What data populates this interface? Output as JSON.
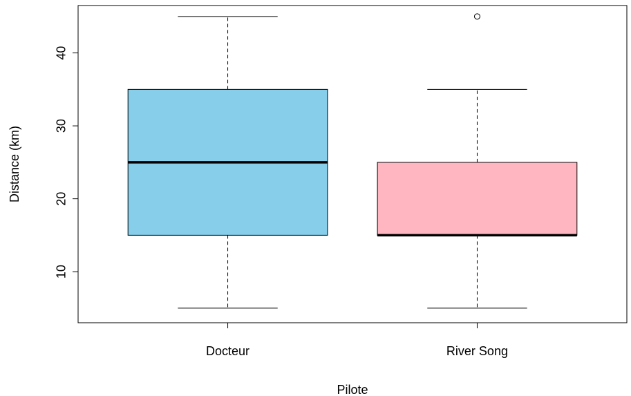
{
  "chart_data": {
    "type": "boxplot",
    "title": "",
    "xlabel": "Pilote",
    "ylabel": "Distance (km)",
    "ylim": [
      3,
      46.5
    ],
    "yticks": [
      10,
      20,
      30,
      40
    ],
    "grid": false,
    "groups": [
      {
        "label": "Docteur",
        "color": "#87CEEB",
        "whisker_low": 5,
        "q1": 15,
        "median": 25,
        "q3": 35,
        "whisker_high": 45,
        "outliers": []
      },
      {
        "label": "River Song",
        "color": "#FFB6C1",
        "whisker_low": 5,
        "q1": 15,
        "median": 15,
        "q3": 25,
        "whisker_high": 35,
        "outliers": [
          45
        ]
      }
    ]
  }
}
